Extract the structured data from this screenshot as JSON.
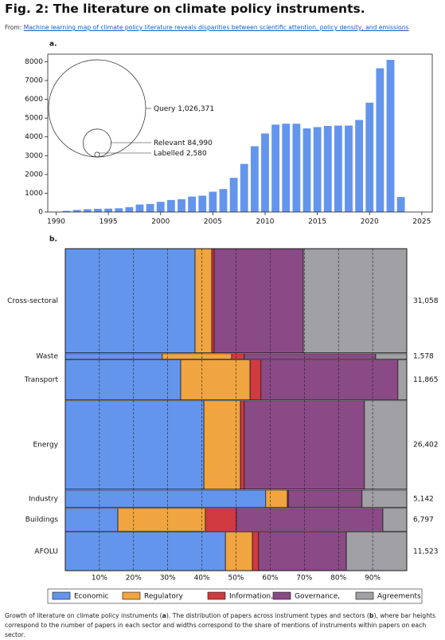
{
  "header": {
    "title": "Fig. 2: The literature on climate policy instruments.",
    "source_prefix": "From:",
    "source_link": "Machine learning map of climate policy literature reveals disparities between scientific attention, policy density, and emissions"
  },
  "chart_data": [
    {
      "type": "bar",
      "panel_label": "a.",
      "color": "#6495ed",
      "x": [
        1991,
        1992,
        1993,
        1994,
        1995,
        1996,
        1997,
        1998,
        1999,
        2000,
        2001,
        2002,
        2003,
        2004,
        2005,
        2006,
        2007,
        2008,
        2009,
        2010,
        2011,
        2012,
        2013,
        2014,
        2015,
        2016,
        2017,
        2018,
        2019,
        2020,
        2021,
        2022,
        2023
      ],
      "values": [
        60,
        110,
        150,
        170,
        180,
        200,
        260,
        400,
        430,
        540,
        640,
        680,
        820,
        870,
        1080,
        1220,
        1820,
        2560,
        3500,
        4180,
        4650,
        4700,
        4700,
        4450,
        4520,
        4580,
        4600,
        4600,
        4900,
        5820,
        7650,
        8100,
        800
      ],
      "xlim": [
        1989.2,
        2026
      ],
      "ylim": [
        0,
        8400
      ],
      "xticks": [
        1990,
        1995,
        2000,
        2005,
        2010,
        2015,
        2020,
        2025
      ],
      "yticks": [
        0,
        1000,
        2000,
        3000,
        4000,
        5000,
        6000,
        7000,
        8000
      ],
      "circles": {
        "names": [
          "Query",
          "Relevant",
          "Labelled"
        ],
        "values": [
          1026371,
          84990,
          2580
        ],
        "value_labels": [
          "1,026,371",
          "84,990",
          "2,580"
        ]
      }
    },
    {
      "type": "mekko",
      "panel_label": "b.",
      "categories": [
        "Cross-sectoral",
        "Waste",
        "Transport",
        "Energy",
        "Industry",
        "Buildings",
        "AFOLU"
      ],
      "totals": [
        31058,
        1578,
        11865,
        26402,
        5142,
        6797,
        11523
      ],
      "total_labels": [
        "31,058",
        "1,578",
        "11,865",
        "26,402",
        "5,142",
        "6,797",
        "11,523"
      ],
      "series": [
        {
          "name": "Economic",
          "color": "#6495ed",
          "values": [
            38.0,
            28.4,
            33.8,
            40.6,
            58.7,
            15.4,
            46.9
          ]
        },
        {
          "name": "Regulatory",
          "color": "#f0a540",
          "values": [
            4.9,
            20.3,
            20.3,
            10.7,
            6.3,
            25.6,
            7.9
          ]
        },
        {
          "name": "Information,",
          "color": "#d03a40",
          "values": [
            0.7,
            3.7,
            3.2,
            1.1,
            0.3,
            9.1,
            1.8
          ]
        },
        {
          "name": "Governance,",
          "color": "#8a4a86",
          "values": [
            26.1,
            38.5,
            40.1,
            35.2,
            21.6,
            42.9,
            25.7
          ]
        },
        {
          "name": "Agreements",
          "color": "#a0a0a5",
          "values": [
            30.3,
            9.1,
            2.6,
            12.4,
            13.1,
            7.0,
            17.7
          ]
        }
      ],
      "xlim": [
        0,
        100
      ],
      "xticks": [
        {
          "value": 10,
          "label": "10%"
        },
        {
          "value": 20,
          "label": "20%"
        },
        {
          "value": 30,
          "label": "30%"
        },
        {
          "value": 40,
          "label": "40%"
        },
        {
          "value": 50,
          "label": "50%"
        },
        {
          "value": 60,
          "label": "60%"
        },
        {
          "value": 70,
          "label": "70%"
        },
        {
          "value": 80,
          "label": "80%"
        },
        {
          "value": 90,
          "label": "90%"
        }
      ],
      "grid": true
    }
  ],
  "caption": [
    "Growth of literature on climate policy instruments (",
    "a",
    "). The distribution of papers across instrument types and sectors (",
    "b",
    "), where bar heights correspond to the number of papers in each sector and widths correspond to the share of mentions of instruments within papers on each sector."
  ]
}
